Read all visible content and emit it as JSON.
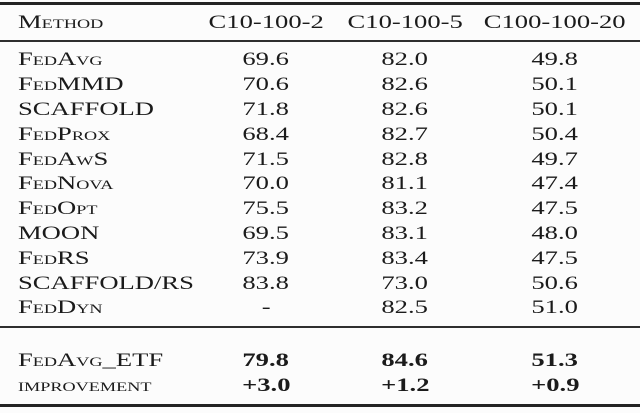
{
  "table": {
    "columns": [
      "Method",
      "C10-100-2",
      "C10-100-5",
      "C100-100-20"
    ],
    "rows": [
      {
        "method": "FedAvg",
        "values": [
          "69.6",
          "82.0",
          "49.8"
        ]
      },
      {
        "method": "FedMMD",
        "values": [
          "70.6",
          "82.6",
          "50.1"
        ]
      },
      {
        "method": "SCAFFOLD",
        "values": [
          "71.8",
          "82.6",
          "50.1"
        ]
      },
      {
        "method": "FedProx",
        "values": [
          "68.4",
          "82.7",
          "50.4"
        ]
      },
      {
        "method": "FedAwS",
        "values": [
          "71.5",
          "82.8",
          "49.7"
        ]
      },
      {
        "method": "FedNova",
        "values": [
          "70.0",
          "81.1",
          "47.4"
        ]
      },
      {
        "method": "FedOpt",
        "values": [
          "75.5",
          "83.2",
          "47.5"
        ]
      },
      {
        "method": "MOON",
        "values": [
          "69.5",
          "83.1",
          "48.0"
        ]
      },
      {
        "method": "FedRS",
        "values": [
          "73.9",
          "83.4",
          "47.5"
        ]
      },
      {
        "method": "SCAFFOLD/RS",
        "values": [
          "83.8",
          "73.0",
          "50.6"
        ]
      },
      {
        "method": "FedDyn",
        "values": [
          "-",
          "82.5",
          "51.0"
        ]
      }
    ],
    "summary_rows": [
      {
        "method": "FedAvg_ETF",
        "values": [
          "79.8",
          "84.6",
          "51.3"
        ]
      },
      {
        "method": "improvement",
        "values": [
          "+3.0",
          "+1.2",
          "+0.9"
        ]
      }
    ],
    "colors": {
      "background": "#fcfcfc",
      "text": "#1b1b1b",
      "rule_heavy": "#232323",
      "rule_mid": "#2e2e2e"
    }
  }
}
